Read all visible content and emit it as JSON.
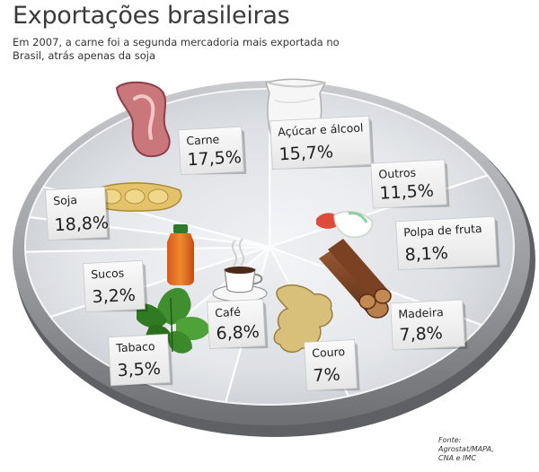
{
  "title": "Exportações brasileiras",
  "subtitle": "Em 2007, a carne foi a segunda mercadoria mais exportada no Brasil, atrás apenas da soja",
  "source": [
    "Fonte:",
    "Agrostat/MAPA,",
    "CNA e IMC"
  ],
  "chart_data": {
    "type": "pie",
    "title": "Exportações brasileiras",
    "unit": "%",
    "slices": [
      {
        "name": "Carne",
        "value": 17.5,
        "value_label": "17,5%",
        "icon": "meat-icon"
      },
      {
        "name": "Açúcar e álcool",
        "value": 15.7,
        "value_label": "15,7%",
        "icon": "sugar-sack-icon"
      },
      {
        "name": "Outros",
        "value": 11.5,
        "value_label": "11,5%",
        "icon": ""
      },
      {
        "name": "Polpa de fruta",
        "value": 8.1,
        "value_label": "8,1%",
        "icon": "fruit-pulp-icon"
      },
      {
        "name": "Madeira",
        "value": 7.8,
        "value_label": "7,8%",
        "icon": "wood-logs-icon"
      },
      {
        "name": "Couro",
        "value": 7,
        "value_label": "7%",
        "icon": "leather-hide-icon"
      },
      {
        "name": "Café",
        "value": 6.8,
        "value_label": "6,8%",
        "icon": "coffee-cup-icon"
      },
      {
        "name": "Tabaco",
        "value": 3.5,
        "value_label": "3,5%",
        "icon": "tobacco-leaf-icon"
      },
      {
        "name": "Sucos",
        "value": 3.2,
        "value_label": "3,2%",
        "icon": "juice-bottle-icon"
      },
      {
        "name": "Soja",
        "value": 18.8,
        "value_label": "18,8%",
        "icon": "soy-pod-icon"
      }
    ],
    "legend": "none"
  },
  "colors": {
    "plate_top": "#dfe2e6",
    "plate_center": "#f3f4f6",
    "plate_rim": "#8e9093",
    "plate_rim_light": "#c4c6c9",
    "label_card": "#f4f4f4",
    "text": "#1e1e1e"
  }
}
